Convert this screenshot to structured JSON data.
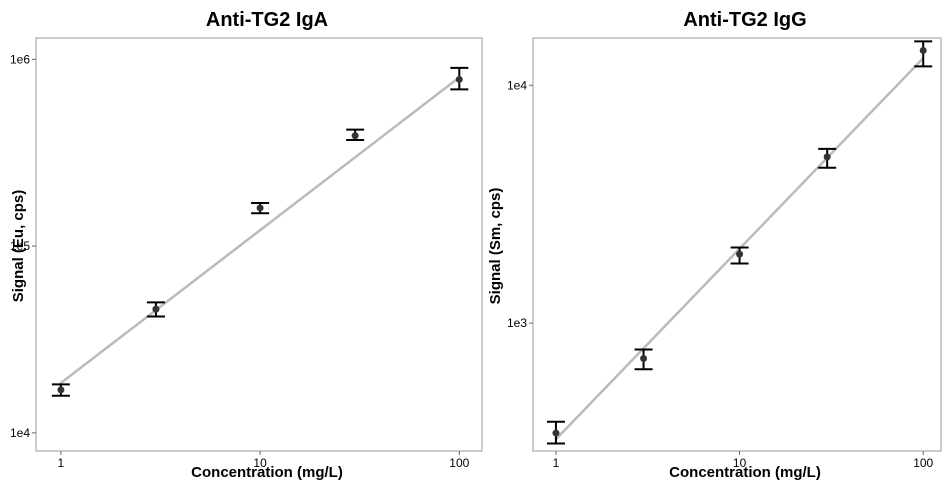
{
  "chart_data": [
    {
      "type": "scatter",
      "title": "Anti-TG2 IgA",
      "xlabel": "Concentration (mg/L)",
      "ylabel": "Signal (Eu, cps)",
      "x_scale": "log",
      "y_scale": "log",
      "xlim": [
        0.75,
        130
      ],
      "ylim": [
        8000,
        1300000
      ],
      "x_ticks": [
        1,
        10,
        100
      ],
      "x_tick_labels": [
        "1",
        "10",
        "100"
      ],
      "y_ticks": [
        10000,
        100000,
        1000000
      ],
      "y_tick_labels": [
        "1e4",
        "1e5",
        "1e6"
      ],
      "grid": false,
      "series": [
        {
          "x": [
            1,
            3,
            10,
            30,
            100
          ],
          "y": [
            17000,
            46000,
            160000,
            390000,
            780000
          ],
          "y_low": [
            15800,
            42000,
            150000,
            370000,
            690000
          ],
          "y_high": [
            18200,
            50000,
            170000,
            420000,
            900000
          ],
          "point_color": "#333333",
          "error_color": "#000000"
        }
      ],
      "fit_line": {
        "x": [
          1,
          100
        ],
        "y": [
          18500,
          800000
        ],
        "color": "#bbbbbb"
      }
    },
    {
      "type": "scatter",
      "title": "Anti-TG2 IgG",
      "xlabel": "Concentration (mg/L)",
      "ylabel": "Signal (Sm, cps)",
      "x_scale": "log",
      "y_scale": "log",
      "xlim": [
        0.75,
        125
      ],
      "ylim": [
        290,
        15800
      ],
      "x_ticks": [
        1,
        10,
        100
      ],
      "x_tick_labels": [
        "1",
        "10",
        "100"
      ],
      "y_ticks": [
        1000,
        10000
      ],
      "y_tick_labels": [
        "1e3",
        "1e4"
      ],
      "grid": false,
      "series": [
        {
          "x": [
            1,
            3,
            10,
            30,
            100
          ],
          "y": [
            345,
            710,
            1950,
            5000,
            14000
          ],
          "y_low": [
            312,
            640,
            1780,
            4500,
            12000
          ],
          "y_high": [
            385,
            775,
            2080,
            5400,
            15300
          ],
          "point_color": "#333333",
          "error_color": "#000000"
        }
      ],
      "fit_line": {
        "x": [
          1,
          100
        ],
        "y": [
          325,
          13000
        ],
        "color": "#bbbbbb"
      }
    }
  ]
}
